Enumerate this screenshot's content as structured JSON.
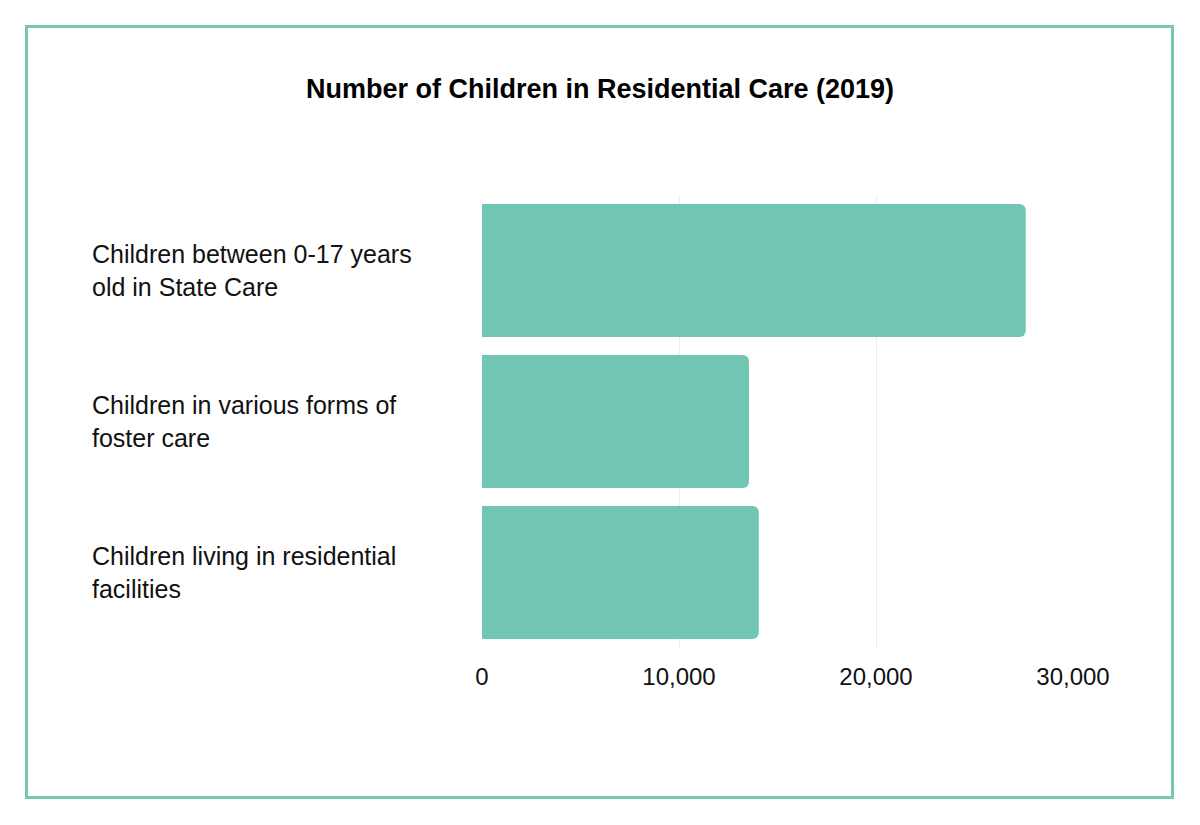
{
  "chart_data": {
    "type": "bar",
    "title": "Number of Children in Residential Care (2019)",
    "orientation": "horizontal",
    "categories": [
      "Children between 0-17 years old in State Care",
      "Children in various forms of foster care",
      "Children living in residential facilities"
    ],
    "values": [
      27600,
      13550,
      14050
    ],
    "color": "#70c6b2",
    "xlim": [
      0,
      30000
    ],
    "xticks": [
      0,
      {
        "value": 10000,
        "label": "10,000"
      },
      {
        "value": 20000,
        "label": "20,000"
      },
      {
        "value": 30000,
        "label": "30,000"
      }
    ],
    "grid": true
  }
}
